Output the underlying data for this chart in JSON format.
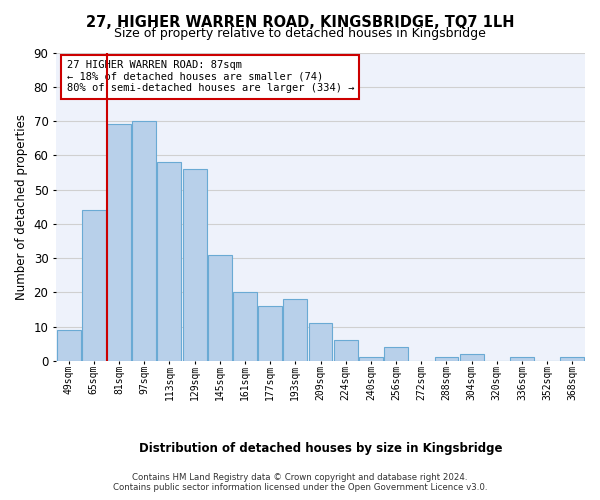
{
  "title": "27, HIGHER WARREN ROAD, KINGSBRIDGE, TQ7 1LH",
  "subtitle": "Size of property relative to detached houses in Kingsbridge",
  "xlabel": "Distribution of detached houses by size in Kingsbridge",
  "ylabel": "Number of detached properties",
  "categories": [
    "49sqm",
    "65sqm",
    "81sqm",
    "97sqm",
    "113sqm",
    "129sqm",
    "145sqm",
    "161sqm",
    "177sqm",
    "193sqm",
    "209sqm",
    "224sqm",
    "240sqm",
    "256sqm",
    "272sqm",
    "288sqm",
    "304sqm",
    "320sqm",
    "336sqm",
    "352sqm",
    "368sqm"
  ],
  "values": [
    9,
    44,
    69,
    70,
    58,
    56,
    31,
    20,
    16,
    18,
    11,
    6,
    1,
    4,
    0,
    1,
    2,
    0,
    1,
    0,
    1
  ],
  "bar_color": "#b8d0ea",
  "bar_edge_color": "#6aaad4",
  "vline_color": "#cc0000",
  "annotation_text": "27 HIGHER WARREN ROAD: 87sqm\n← 18% of detached houses are smaller (74)\n80% of semi-detached houses are larger (334) →",
  "annotation_box_color": "white",
  "annotation_box_edge_color": "#cc0000",
  "ylim": [
    0,
    90
  ],
  "yticks": [
    0,
    10,
    20,
    30,
    40,
    50,
    60,
    70,
    80,
    90
  ],
  "grid_color": "#d0d0d0",
  "background_color": "#eef2fb",
  "footer": "Contains HM Land Registry data © Crown copyright and database right 2024.\nContains public sector information licensed under the Open Government Licence v3.0."
}
